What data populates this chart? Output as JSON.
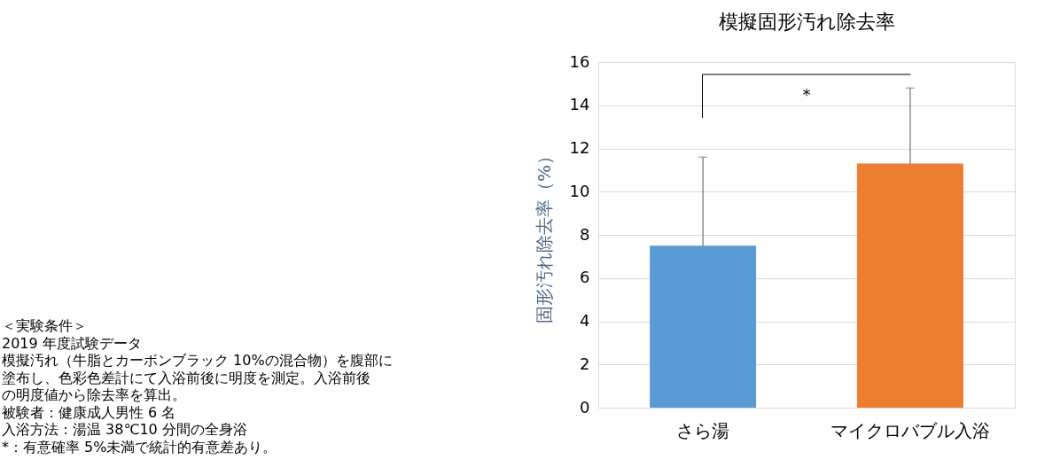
{
  "chart_data": {
    "type": "bar",
    "title": "模擬固形汚れ除去率",
    "ylabel": "固形汚れ除去率（%）",
    "categories": [
      "さら湯",
      "マイクロバブル入浴"
    ],
    "values": [
      7.5,
      11.3
    ],
    "errors": [
      4.1,
      3.5
    ],
    "colors": [
      "#5b9bd5",
      "#ed7d31"
    ],
    "ylim": [
      0,
      16
    ],
    "yticks": [
      0,
      2,
      4,
      6,
      8,
      10,
      12,
      14,
      16
    ],
    "grid": "y",
    "annotations": [
      "*",
      "＜実験条件＞",
      "2019 年度試験データ",
      "模擬汚れ（牛脂とカーボンブラック 10%の混合物）を腹部に",
      "塗布し、色彩色差計にて入浴前後に明度を測定。入浴前後",
      "の明度値から除去率を算出。",
      "被験者：健康成人男性 6 名",
      "入浴方法：湯温 38℃10 分間の全身浴",
      "*：有意確率 5%未満で統計的有意差あり。"
    ]
  }
}
